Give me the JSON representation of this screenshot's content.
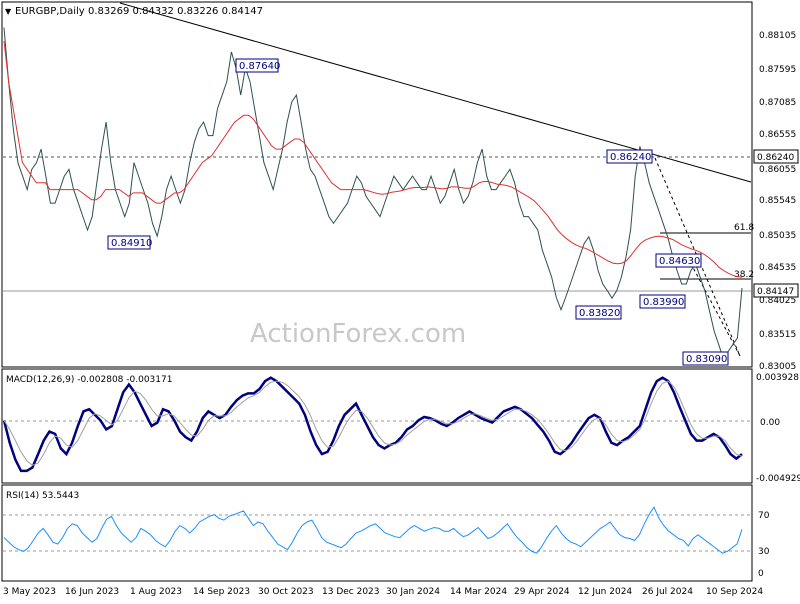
{
  "header": {
    "symbol": "EURGBP,Daily",
    "ohlc": "0.83269 0.84332 0.83226 0.84147"
  },
  "watermark": "ActionForex.com",
  "chart_data": [
    {
      "type": "line",
      "panel": "price",
      "ylim": [
        0.83,
        0.8835
      ],
      "y_ticks": [
        "0.88105",
        "0.87595",
        "0.87085",
        "0.86555",
        "0.86055",
        "0.85545",
        "0.85035",
        "0.84535",
        "0.84025",
        "0.83515",
        "0.83005"
      ],
      "current_price": "0.84147",
      "resistance_level": "0.86240",
      "annotations": [
        "0.87640",
        "0.84910",
        "0.86240",
        "0.83820",
        "0.83990",
        "0.84630",
        "0.83090"
      ],
      "fib_labels": [
        "61.8",
        "38.2"
      ],
      "series": [
        {
          "role": "price",
          "color": "#2f4f4f",
          "values": [
            0.88,
            0.872,
            0.865,
            0.86,
            0.858,
            0.856,
            0.859,
            0.86,
            0.862,
            0.858,
            0.854,
            0.854,
            0.856,
            0.858,
            0.859,
            0.856,
            0.854,
            0.852,
            0.85,
            0.852,
            0.857,
            0.862,
            0.866,
            0.86,
            0.856,
            0.854,
            0.852,
            0.854,
            0.86,
            0.858,
            0.856,
            0.854,
            0.851,
            0.8491,
            0.852,
            0.856,
            0.858,
            0.856,
            0.854,
            0.856,
            0.86,
            0.863,
            0.865,
            0.866,
            0.864,
            0.864,
            0.868,
            0.87,
            0.872,
            0.8764,
            0.874,
            0.87,
            0.874,
            0.872,
            0.868,
            0.864,
            0.86,
            0.858,
            0.856,
            0.859,
            0.862,
            0.866,
            0.869,
            0.87,
            0.866,
            0.862,
            0.859,
            0.858,
            0.856,
            0.854,
            0.852,
            0.851,
            0.852,
            0.853,
            0.854,
            0.856,
            0.858,
            0.857,
            0.855,
            0.854,
            0.853,
            0.852,
            0.854,
            0.856,
            0.858,
            0.857,
            0.856,
            0.857,
            0.858,
            0.857,
            0.856,
            0.856,
            0.858,
            0.856,
            0.854,
            0.855,
            0.857,
            0.859,
            0.856,
            0.854,
            0.855,
            0.857,
            0.86,
            0.862,
            0.858,
            0.856,
            0.856,
            0.857,
            0.858,
            0.859,
            0.857,
            0.854,
            0.852,
            0.852,
            0.851,
            0.85,
            0.847,
            0.845,
            0.843,
            0.84,
            0.8382,
            0.84,
            0.842,
            0.844,
            0.846,
            0.848,
            0.849,
            0.847,
            0.844,
            0.842,
            0.841,
            0.8399,
            0.841,
            0.843,
            0.846,
            0.85,
            0.858,
            0.8624,
            0.86,
            0.857,
            0.855,
            0.853,
            0.851,
            0.849,
            0.8463,
            0.844,
            0.842,
            0.842,
            0.844,
            0.845,
            0.843,
            0.841,
            0.838,
            0.835,
            0.833,
            0.8309,
            0.832,
            0.833,
            0.834,
            0.8414
          ]
        },
        {
          "role": "moving-average",
          "color": "#e03030",
          "values": [
            0.878,
            0.872,
            0.868,
            0.864,
            0.86,
            0.859,
            0.858,
            0.857,
            0.857,
            0.857,
            0.856,
            0.856,
            0.856,
            0.856,
            0.856,
            0.856,
            0.856,
            0.8555,
            0.855,
            0.8545,
            0.8545,
            0.855,
            0.856,
            0.856,
            0.856,
            0.856,
            0.8555,
            0.855,
            0.8555,
            0.8555,
            0.8555,
            0.855,
            0.8545,
            0.854,
            0.854,
            0.8545,
            0.855,
            0.8555,
            0.8555,
            0.856,
            0.857,
            0.858,
            0.859,
            0.86,
            0.8605,
            0.861,
            0.862,
            0.863,
            0.864,
            0.865,
            0.866,
            0.8665,
            0.867,
            0.867,
            0.8665,
            0.8655,
            0.8645,
            0.8635,
            0.8625,
            0.862,
            0.862,
            0.8625,
            0.863,
            0.8635,
            0.8635,
            0.863,
            0.862,
            0.861,
            0.86,
            0.859,
            0.858,
            0.857,
            0.8565,
            0.856,
            0.856,
            0.856,
            0.856,
            0.856,
            0.856,
            0.8558,
            0.8556,
            0.8554,
            0.8553,
            0.8554,
            0.8556,
            0.8557,
            0.8558,
            0.856,
            0.8562,
            0.8563,
            0.8563,
            0.8563,
            0.8564,
            0.8563,
            0.8562,
            0.8561,
            0.8562,
            0.8564,
            0.8564,
            0.8563,
            0.8562,
            0.8562,
            0.8565,
            0.857,
            0.8572,
            0.8572,
            0.857,
            0.8568,
            0.8567,
            0.8566,
            0.8564,
            0.856,
            0.8556,
            0.8552,
            0.8548,
            0.8543,
            0.8536,
            0.8528,
            0.852,
            0.851,
            0.85,
            0.8493,
            0.8487,
            0.8482,
            0.8478,
            0.8475,
            0.8473,
            0.847,
            0.8466,
            0.8462,
            0.8458,
            0.8454,
            0.8451,
            0.845,
            0.8451,
            0.8455,
            0.8463,
            0.8472,
            0.848,
            0.8485,
            0.8488,
            0.849,
            0.8491,
            0.849,
            0.8488,
            0.8486,
            0.8482,
            0.8478,
            0.8475,
            0.8472,
            0.847,
            0.8467,
            0.8463,
            0.8458,
            0.8452,
            0.8445,
            0.844,
            0.8436,
            0.8433,
            0.8431,
            0.843
          ]
        }
      ]
    },
    {
      "type": "line",
      "panel": "macd",
      "title": "MACD(12,26,9) -0.002808 -0.003171",
      "ylim": [
        -0.0054,
        0.0044
      ],
      "y_ticks": [
        "0.003928",
        "0.00",
        "-0.004929"
      ],
      "series": [
        {
          "role": "macd",
          "color": "#000080",
          "values": [
            0.0,
            -0.002,
            -0.0035,
            -0.0045,
            -0.0045,
            -0.0042,
            -0.003,
            -0.0018,
            -0.001,
            -0.0012,
            -0.0025,
            -0.003,
            -0.002,
            -0.0005,
            0.0008,
            0.001,
            0.0005,
            0.0,
            -0.0008,
            -0.0005,
            0.001,
            0.0025,
            0.0032,
            0.0025,
            0.0015,
            0.0005,
            -0.0005,
            -0.0002,
            0.001,
            0.0008,
            0.0,
            -0.001,
            -0.0015,
            -0.0018,
            -0.001,
            0.0002,
            0.0008,
            0.0005,
            0.0002,
            0.0005,
            0.0012,
            0.0018,
            0.0022,
            0.0024,
            0.0024,
            0.0028,
            0.0035,
            0.0038,
            0.0035,
            0.003,
            0.0025,
            0.002,
            0.0015,
            0.0005,
            -0.001,
            -0.0022,
            -0.003,
            -0.0028,
            -0.0018,
            -0.0005,
            0.0005,
            0.001,
            0.0015,
            0.0005,
            -0.0005,
            -0.0015,
            -0.0022,
            -0.0025,
            -0.0022,
            -0.002,
            -0.0015,
            -0.0008,
            -0.0005,
            0.0,
            0.0003,
            0.0002,
            0.0,
            -0.0003,
            -0.0005,
            -0.0002,
            0.0002,
            0.0005,
            0.0008,
            0.0005,
            0.0002,
            0.0,
            -0.0002,
            0.0003,
            0.0008,
            0.001,
            0.0012,
            0.001,
            0.0006,
            0.0002,
            -0.0004,
            -0.001,
            -0.0018,
            -0.0028,
            -0.003,
            -0.0026,
            -0.002,
            -0.0012,
            -0.0005,
            0.0002,
            0.0005,
            0.0002,
            -0.001,
            -0.002,
            -0.0022,
            -0.0018,
            -0.0015,
            -0.001,
            -0.0005,
            0.001,
            0.0025,
            0.0035,
            0.0038,
            0.0035,
            0.0025,
            0.0012,
            0.0,
            -0.0012,
            -0.0018,
            -0.0018,
            -0.0015,
            -0.0012,
            -0.0015,
            -0.0022,
            -0.003,
            -0.0034,
            -0.003
          ]
        },
        {
          "role": "signal",
          "color": "#a0a0a0",
          "values": [
            0.0,
            -0.0008,
            -0.0018,
            -0.0028,
            -0.0036,
            -0.004,
            -0.0038,
            -0.003,
            -0.002,
            -0.0014,
            -0.0016,
            -0.0022,
            -0.0024,
            -0.0018,
            -0.0008,
            0.0002,
            0.0006,
            0.0004,
            0.0,
            -0.0004,
            0.0,
            0.001,
            0.002,
            0.0026,
            0.0024,
            0.0018,
            0.001,
            0.0004,
            0.0004,
            0.0006,
            0.0004,
            -0.0002,
            -0.0008,
            -0.0013,
            -0.0014,
            -0.0008,
            0.0,
            0.0004,
            0.0004,
            0.0004,
            0.0007,
            0.0012,
            0.0016,
            0.002,
            0.0022,
            0.0025,
            0.003,
            0.0034,
            0.0035,
            0.0034,
            0.0031,
            0.0026,
            0.0021,
            0.0014,
            0.0004,
            -0.0008,
            -0.0018,
            -0.0024,
            -0.0023,
            -0.0015,
            -0.0005,
            0.0003,
            0.0009,
            0.0008,
            0.0002,
            -0.0006,
            -0.0014,
            -0.002,
            -0.0022,
            -0.0021,
            -0.0018,
            -0.0013,
            -0.0009,
            -0.0005,
            -0.0001,
            0.0001,
            0.0001,
            -0.0001,
            -0.0003,
            -0.0003,
            -0.0001,
            0.0002,
            0.0005,
            0.0006,
            0.0004,
            0.0002,
            0.0,
            0.0001,
            0.0004,
            0.0007,
            0.001,
            0.001,
            0.0008,
            0.0005,
            0.0001,
            -0.0005,
            -0.0012,
            -0.002,
            -0.0026,
            -0.0027,
            -0.0024,
            -0.0018,
            -0.0011,
            -0.0004,
            0.0001,
            0.0002,
            -0.0004,
            -0.0012,
            -0.0018,
            -0.0019,
            -0.0017,
            -0.0013,
            -0.0008,
            0.0002,
            0.0015,
            0.0026,
            0.0033,
            0.0035,
            0.003,
            0.002,
            0.0008,
            -0.0004,
            -0.0012,
            -0.0016,
            -0.0016,
            -0.0014,
            -0.0014,
            -0.0018,
            -0.0025,
            -0.003,
            -0.0032
          ]
        }
      ]
    },
    {
      "type": "line",
      "panel": "rsi",
      "title": "RSI(14) 53.5443",
      "ylim": [
        0,
        100
      ],
      "y_ticks": [
        "70",
        "30",
        "0"
      ],
      "series": [
        {
          "role": "rsi",
          "color": "#1e90ff",
          "values": [
            45,
            40,
            35,
            32,
            30,
            34,
            42,
            50,
            55,
            48,
            40,
            38,
            45,
            55,
            60,
            58,
            50,
            45,
            40,
            44,
            55,
            65,
            68,
            58,
            50,
            45,
            40,
            45,
            55,
            52,
            48,
            42,
            38,
            35,
            42,
            52,
            58,
            55,
            50,
            55,
            62,
            65,
            68,
            70,
            66,
            64,
            68,
            70,
            72,
            74,
            66,
            58,
            62,
            60,
            52,
            45,
            38,
            35,
            32,
            40,
            50,
            58,
            62,
            64,
            55,
            45,
            40,
            38,
            36,
            34,
            38,
            44,
            50,
            52,
            55,
            58,
            60,
            55,
            50,
            48,
            46,
            45,
            50,
            55,
            58,
            55,
            52,
            54,
            56,
            55,
            52,
            52,
            55,
            50,
            46,
            48,
            52,
            56,
            50,
            44,
            46,
            50,
            55,
            60,
            52,
            45,
            40,
            34,
            30,
            28,
            35,
            44,
            52,
            58,
            50,
            44,
            40,
            38,
            35,
            40,
            45,
            50,
            55,
            58,
            62,
            55,
            48,
            45,
            44,
            42,
            48,
            60,
            70,
            78,
            66,
            58,
            52,
            48,
            44,
            42,
            36,
            44,
            48,
            44,
            40,
            36,
            32,
            28,
            30,
            34,
            38,
            54
          ]
        }
      ]
    }
  ],
  "x_axis": {
    "labels": [
      "3 May 2023",
      "16 Jun 2023",
      "1 Aug 2023",
      "14 Sep 2023",
      "30 Oct 2023",
      "13 Dec 2023",
      "30 Jan 2024",
      "14 Mar 2024",
      "29 Apr 2024",
      "12 Jun 2024",
      "26 Jul 2024",
      "10 Sep 2024"
    ]
  }
}
